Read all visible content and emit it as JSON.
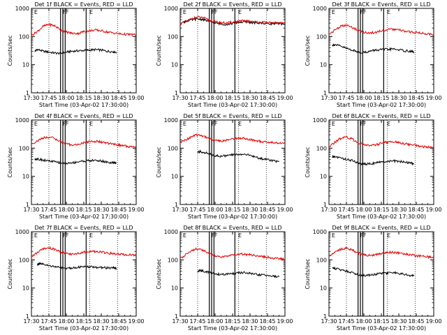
{
  "figure": {
    "x_axis_title": "Start Time (03-Apr-02 17:30:00)",
    "y_axis_title": "Counts/sec",
    "x_ticks": [
      "17:30",
      "17:45",
      "18:00",
      "18:15",
      "18:30",
      "18:45",
      "19:00"
    ],
    "y_ticks": [
      "1",
      "10",
      "100",
      "1000"
    ],
    "ylim": [
      1,
      1000
    ],
    "xlim_minutes": [
      0,
      90
    ],
    "y_scale": "log",
    "colors": {
      "events": "#000000",
      "lld": "#e00000"
    }
  },
  "chart_data": [
    {
      "type": "line",
      "title": "Det 1f BLACK = Events, RED = LLD",
      "marker_labels": [
        "E",
        "F",
        "F",
        "E"
      ],
      "dotted_lines_min": [
        15,
        50,
        74
      ],
      "solid_lines_min": [
        25,
        27,
        29,
        47
      ],
      "series": [
        {
          "name": "Events",
          "color": "#000000",
          "x_min": [
            3,
            5,
            10,
            15,
            20,
            25,
            30,
            35,
            40,
            45,
            50,
            55,
            60,
            65,
            70,
            73
          ],
          "y": [
            30,
            35,
            30,
            28,
            26,
            25,
            28,
            30,
            31,
            32,
            33,
            34,
            33,
            30,
            29,
            28
          ]
        },
        {
          "name": "LLD",
          "color": "#e00000",
          "x_min": [
            0,
            5,
            10,
            15,
            20,
            25,
            30,
            35,
            40,
            45,
            50,
            55,
            60,
            65,
            70,
            75,
            80,
            85,
            90
          ],
          "y": [
            110,
            150,
            230,
            270,
            240,
            175,
            145,
            130,
            128,
            150,
            160,
            170,
            160,
            145,
            135,
            125,
            120,
            118,
            115
          ]
        }
      ]
    },
    {
      "type": "line",
      "title": "Det 2f BLACK = Events, RED = LLD",
      "marker_labels": [
        "E",
        "F",
        "F",
        "E"
      ],
      "dotted_lines_min": [
        15,
        50,
        74
      ],
      "solid_lines_min": [
        25,
        27,
        29,
        47
      ],
      "series": [
        {
          "name": "Events",
          "color": "#000000",
          "x_min": [
            3,
            5,
            10,
            15,
            20,
            25,
            30,
            35,
            40,
            45,
            50,
            55,
            60,
            65,
            70,
            75,
            80,
            85,
            90
          ],
          "y": [
            320,
            350,
            390,
            420,
            400,
            340,
            300,
            280,
            270,
            290,
            320,
            330,
            320,
            300,
            300,
            290,
            290,
            285,
            280
          ]
        },
        {
          "name": "LLD",
          "color": "#e00000",
          "x_min": [
            0,
            5,
            10,
            15,
            20,
            25,
            30,
            35,
            40,
            45,
            50,
            55,
            60,
            65,
            70,
            75,
            80,
            85,
            90
          ],
          "y": [
            280,
            340,
            430,
            490,
            460,
            380,
            330,
            310,
            300,
            320,
            350,
            360,
            350,
            330,
            320,
            310,
            305,
            300,
            298
          ]
        }
      ]
    },
    {
      "type": "line",
      "title": "Det 3f BLACK = Events, RED = LLD",
      "marker_labels": [
        "E",
        "F",
        "F",
        "E"
      ],
      "dotted_lines_min": [
        15,
        50,
        74
      ],
      "solid_lines_min": [
        25,
        27,
        29,
        47
      ],
      "series": [
        {
          "name": "Events",
          "color": "#000000",
          "x_min": [
            3,
            5,
            10,
            15,
            20,
            25,
            30,
            35,
            40,
            45,
            50,
            55,
            60,
            65,
            70,
            73
          ],
          "y": [
            50,
            52,
            45,
            38,
            33,
            28,
            27,
            30,
            33,
            34,
            35,
            36,
            34,
            31,
            30,
            28
          ]
        },
        {
          "name": "LLD",
          "color": "#e00000",
          "x_min": [
            0,
            5,
            10,
            15,
            20,
            25,
            30,
            35,
            40,
            45,
            50,
            55,
            60,
            65,
            70,
            75,
            80,
            85,
            90
          ],
          "y": [
            120,
            170,
            230,
            250,
            210,
            165,
            140,
            135,
            140,
            160,
            175,
            180,
            170,
            155,
            145,
            140,
            130,
            125,
            120
          ]
        }
      ]
    },
    {
      "type": "line",
      "title": "Det 4f BLACK = Events, RED = LLD",
      "marker_labels": [
        "E",
        "F",
        "F",
        "E"
      ],
      "dotted_lines_min": [
        15,
        50,
        74
      ],
      "solid_lines_min": [
        25,
        27,
        29,
        47
      ],
      "series": [
        {
          "name": "Events",
          "color": "#000000",
          "x_min": [
            3,
            5,
            10,
            15,
            20,
            25,
            30,
            35,
            40,
            45,
            50,
            55,
            60,
            65,
            70,
            73
          ],
          "y": [
            40,
            42,
            38,
            35,
            33,
            30,
            29,
            30,
            33,
            35,
            36,
            37,
            35,
            32,
            30,
            29
          ]
        },
        {
          "name": "LLD",
          "color": "#e00000",
          "x_min": [
            0,
            5,
            10,
            15,
            20,
            25,
            30,
            35,
            40,
            45,
            50,
            55,
            60,
            65,
            70,
            75,
            80,
            85,
            90
          ],
          "y": [
            140,
            180,
            230,
            250,
            220,
            170,
            140,
            130,
            135,
            155,
            170,
            175,
            165,
            150,
            140,
            130,
            120,
            112,
            108
          ]
        }
      ]
    },
    {
      "type": "line",
      "title": "Det 5f BLACK = Events, RED = LLD",
      "marker_labels": [
        "E",
        "F",
        "F",
        "E"
      ],
      "dotted_lines_min": [
        15,
        50,
        74
      ],
      "solid_lines_min": [
        25,
        27,
        29,
        47
      ],
      "series": [
        {
          "name": "Events",
          "color": "#000000",
          "x_min": [
            15,
            17,
            20,
            25,
            30,
            35,
            40,
            45,
            50,
            55,
            60,
            65,
            70,
            75,
            80,
            85
          ],
          "y": [
            70,
            75,
            72,
            62,
            55,
            52,
            54,
            58,
            60,
            62,
            55,
            48,
            42,
            40,
            36,
            33
          ]
        },
        {
          "name": "LLD",
          "color": "#e00000",
          "x_min": [
            0,
            5,
            10,
            15,
            20,
            25,
            30,
            35,
            40,
            45,
            50,
            55,
            60,
            65,
            70,
            75,
            80,
            85,
            90
          ],
          "y": [
            160,
            200,
            260,
            300,
            270,
            220,
            190,
            180,
            190,
            215,
            230,
            225,
            205,
            185,
            170,
            162,
            158,
            152,
            148
          ]
        }
      ]
    },
    {
      "type": "line",
      "title": "Det 6f BLACK = Events, RED = LLD",
      "marker_labels": [
        "E",
        "F",
        "F",
        "E"
      ],
      "dotted_lines_min": [
        15,
        50,
        74
      ],
      "solid_lines_min": [
        25,
        27,
        29,
        47
      ],
      "series": [
        {
          "name": "Events",
          "color": "#000000",
          "x_min": [
            3,
            5,
            10,
            15,
            20,
            25,
            30,
            35,
            40,
            45,
            50,
            55,
            60,
            65,
            70,
            73
          ],
          "y": [
            48,
            50,
            45,
            40,
            36,
            30,
            27,
            28,
            30,
            32,
            34,
            35,
            34,
            32,
            30,
            28
          ]
        },
        {
          "name": "LLD",
          "color": "#e00000",
          "x_min": [
            0,
            5,
            10,
            15,
            20,
            25,
            30,
            35,
            40,
            45,
            50,
            55,
            60,
            65,
            70,
            75,
            80,
            85,
            90
          ],
          "y": [
            110,
            160,
            220,
            250,
            210,
            160,
            130,
            125,
            130,
            150,
            165,
            170,
            160,
            145,
            135,
            125,
            115,
            108,
            105
          ]
        }
      ]
    },
    {
      "type": "line",
      "title": "Det 7f BLACK = Events, RED = LLD",
      "marker_labels": [
        "E",
        "F",
        "F",
        "E"
      ],
      "dotted_lines_min": [
        15,
        50,
        74
      ],
      "solid_lines_min": [
        25,
        27,
        29,
        47
      ],
      "series": [
        {
          "name": "Events",
          "color": "#000000",
          "x_min": [
            5,
            7,
            10,
            15,
            20,
            25,
            30,
            35,
            40,
            45,
            50,
            55,
            60,
            65,
            70,
            73
          ],
          "y": [
            70,
            72,
            68,
            62,
            58,
            52,
            50,
            52,
            55,
            56,
            56,
            55,
            53,
            52,
            52,
            50
          ]
        },
        {
          "name": "LLD",
          "color": "#e00000",
          "x_min": [
            0,
            5,
            10,
            15,
            20,
            25,
            30,
            35,
            40,
            45,
            50,
            55,
            60,
            65,
            70,
            75,
            80,
            85,
            90
          ],
          "y": [
            130,
            180,
            240,
            270,
            240,
            190,
            165,
            160,
            170,
            190,
            200,
            200,
            190,
            175,
            165,
            160,
            152,
            148,
            145
          ]
        }
      ]
    },
    {
      "type": "line",
      "title": "Det 8f BLACK = Events, RED = LLD",
      "marker_labels": [
        "E",
        "F",
        "F",
        "E"
      ],
      "dotted_lines_min": [
        15,
        50,
        74
      ],
      "solid_lines_min": [
        25,
        27,
        29,
        47
      ],
      "series": [
        {
          "name": "Events",
          "color": "#000000",
          "x_min": [
            15,
            17,
            20,
            25,
            30,
            35,
            40,
            45,
            50,
            55,
            60,
            65,
            70,
            75,
            80,
            85
          ],
          "y": [
            38,
            42,
            40,
            36,
            32,
            30,
            31,
            33,
            34,
            35,
            33,
            30,
            29,
            28,
            26,
            25
          ]
        },
        {
          "name": "LLD",
          "color": "#e00000",
          "x_min": [
            0,
            5,
            10,
            15,
            20,
            25,
            30,
            35,
            40,
            45,
            50,
            55,
            60,
            65,
            70,
            75,
            80,
            85,
            90
          ],
          "y": [
            110,
            160,
            220,
            250,
            215,
            165,
            135,
            125,
            130,
            150,
            160,
            160,
            150,
            140,
            130,
            125,
            115,
            110,
            105
          ]
        }
      ]
    },
    {
      "type": "line",
      "title": "Det 9f BLACK = Events, RED = LLD",
      "marker_labels": [
        "E",
        "F",
        "F",
        "E"
      ],
      "dotted_lines_min": [
        15,
        50,
        74
      ],
      "solid_lines_min": [
        25,
        27,
        29,
        47
      ],
      "series": [
        {
          "name": "Events",
          "color": "#000000",
          "x_min": [
            3,
            5,
            10,
            15,
            20,
            25,
            30,
            35,
            40,
            45,
            50,
            55,
            60,
            65,
            70,
            73
          ],
          "y": [
            52,
            50,
            45,
            40,
            36,
            30,
            28,
            29,
            31,
            33,
            34,
            35,
            33,
            30,
            28,
            27
          ]
        },
        {
          "name": "LLD",
          "color": "#e00000",
          "x_min": [
            0,
            5,
            10,
            15,
            20,
            25,
            30,
            35,
            40,
            45,
            50,
            55,
            60,
            65,
            70,
            75,
            80,
            85,
            90
          ],
          "y": [
            140,
            190,
            240,
            260,
            225,
            175,
            150,
            145,
            150,
            170,
            185,
            185,
            175,
            160,
            150,
            142,
            135,
            128,
            125
          ]
        }
      ]
    }
  ]
}
